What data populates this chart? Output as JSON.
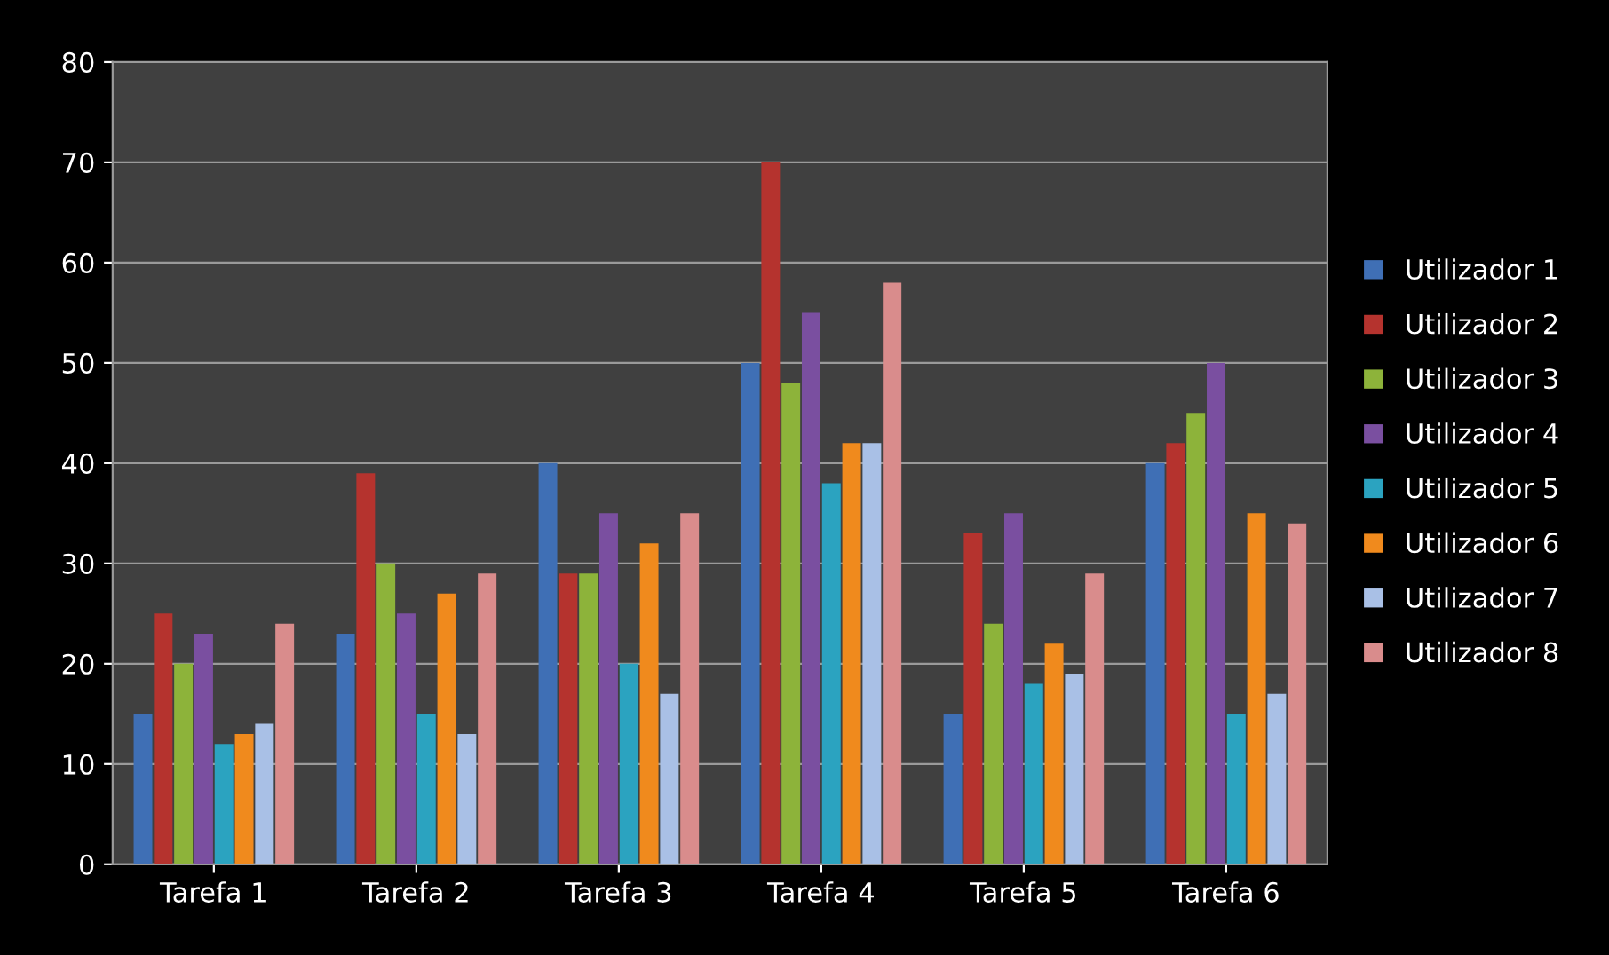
{
  "chart_data": {
    "type": "bar",
    "categories": [
      "Tarefa 1",
      "Tarefa 2",
      "Tarefa 3",
      "Tarefa 4",
      "Tarefa 5",
      "Tarefa 6"
    ],
    "series": [
      {
        "name": "Utilizador 1",
        "color": "#3f6fb5",
        "values": [
          15,
          23,
          40,
          50,
          15,
          40
        ]
      },
      {
        "name": "Utilizador 2",
        "color": "#b5332e",
        "values": [
          25,
          39,
          29,
          70,
          33,
          42
        ]
      },
      {
        "name": "Utilizador 3",
        "color": "#8db33a",
        "values": [
          20,
          30,
          29,
          48,
          24,
          45
        ]
      },
      {
        "name": "Utilizador 4",
        "color": "#7a4fa0",
        "values": [
          23,
          25,
          35,
          55,
          35,
          50
        ]
      },
      {
        "name": "Utilizador 5",
        "color": "#2ba3c0",
        "values": [
          12,
          15,
          20,
          38,
          18,
          15
        ]
      },
      {
        "name": "Utilizador 6",
        "color": "#f08a1d",
        "values": [
          13,
          27,
          32,
          42,
          22,
          35
        ]
      },
      {
        "name": "Utilizador 7",
        "color": "#a9c0e6",
        "values": [
          14,
          13,
          17,
          42,
          19,
          17
        ]
      },
      {
        "name": "Utilizador 8",
        "color": "#d98c8c",
        "values": [
          24,
          29,
          35,
          58,
          29,
          34
        ]
      }
    ],
    "ylim": [
      0,
      80
    ],
    "yticks": [
      0,
      10,
      20,
      30,
      40,
      50,
      60,
      70,
      80
    ],
    "grid": "y",
    "legend": "right"
  }
}
